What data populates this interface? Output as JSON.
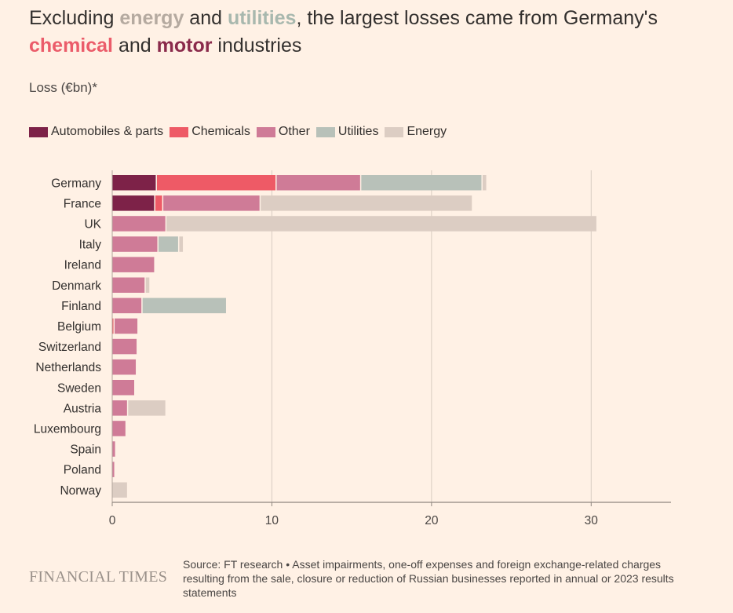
{
  "title": {
    "p1": "Excluding ",
    "energy": "energy",
    "p2": " and ",
    "utilities": "utilities",
    "p3": ", the largest losses came from Germany's ",
    "chemical": "chemical",
    "p4": " and ",
    "motor": "motor",
    "p5": " industries"
  },
  "subtitle": "Loss (€bn)*",
  "footer": {
    "logo": "FINANCIAL TIMES",
    "source": "Source: FT research • Asset impairments, one-off expenses and foreign exchange-related charges resulting from the sale, closure or reduction of Russian businesses reported in annual or 2023 results statements"
  },
  "chart_data": {
    "type": "bar",
    "orientation": "horizontal",
    "stacked": true,
    "ylabel": "Loss (€bn)*",
    "categories": [
      "Germany",
      "France",
      "UK",
      "Italy",
      "Ireland",
      "Denmark",
      "Finland",
      "Belgium",
      "Switzerland",
      "Netherlands",
      "Sweden",
      "Austria",
      "Luxembourg",
      "Spain",
      "Poland",
      "Norway"
    ],
    "series": [
      {
        "name": "Automobiles & parts",
        "color": "#7d2248",
        "values": [
          2.8,
          2.7,
          0,
          0,
          0,
          0,
          0,
          0,
          0,
          0,
          0,
          0,
          0,
          0,
          0,
          0
        ]
      },
      {
        "name": "Chemicals",
        "color": "#ee5a66",
        "values": [
          7.5,
          0.5,
          0,
          0,
          0,
          0,
          0,
          0.15,
          0,
          0,
          0,
          0,
          0,
          0,
          0,
          0
        ]
      },
      {
        "name": "Other",
        "color": "#cf7b97",
        "values": [
          5.3,
          6.1,
          3.4,
          2.9,
          2.7,
          2.1,
          1.9,
          1.5,
          1.6,
          1.55,
          1.45,
          1.0,
          0.9,
          0.25,
          0.2,
          0
        ]
      },
      {
        "name": "Utilities",
        "color": "#b8c1b9",
        "values": [
          7.6,
          0,
          0,
          1.3,
          0,
          0,
          5.3,
          0,
          0,
          0,
          0,
          0,
          0,
          0,
          0,
          0
        ]
      },
      {
        "name": "Energy",
        "color": "#dccdc3",
        "values": [
          0.3,
          13.3,
          27.0,
          0.3,
          0,
          0.3,
          0,
          0,
          0,
          0,
          0,
          2.4,
          0,
          0,
          0,
          1.0
        ]
      }
    ],
    "xlim": [
      0,
      35
    ],
    "xticks": [
      0,
      10,
      20,
      30
    ],
    "grid": true,
    "legend_position": "top-left"
  }
}
